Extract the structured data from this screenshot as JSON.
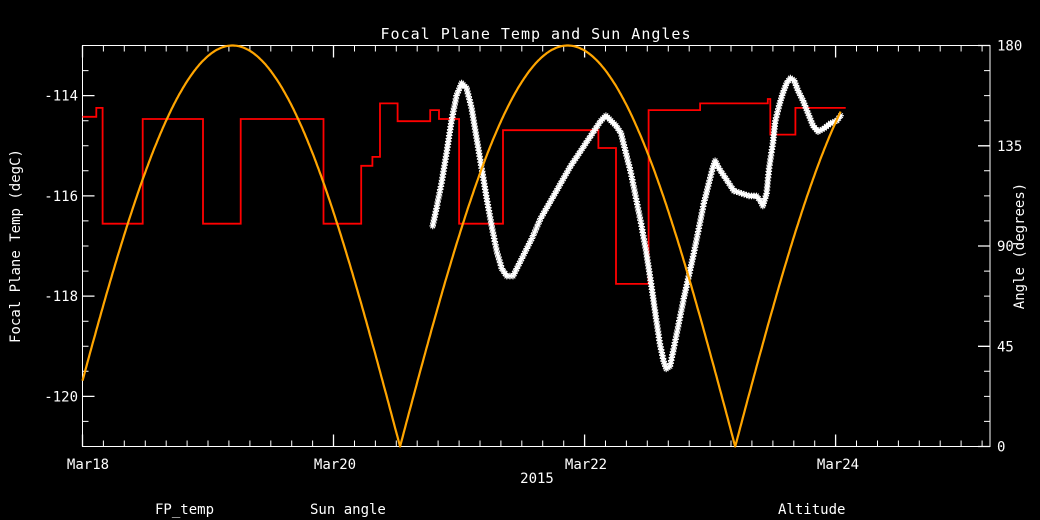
{
  "window": {
    "background": "#000000"
  },
  "chart_data": {
    "type": "line",
    "title": "Focal Plane Temp and Sun Angles",
    "x_axis": {
      "year_label": "2015",
      "tick_labels": [
        "Mar18",
        "Mar20",
        "Mar22",
        "Mar24"
      ],
      "tick_days": [
        0,
        2,
        4,
        6
      ],
      "range_days": [
        0,
        7.23
      ],
      "minor_step_days": 0.166667
    },
    "y_left_axis": {
      "label": "Focal Plane Temp (degC)",
      "tick_labels": [
        "-114",
        "-116",
        "-118",
        "-120"
      ],
      "tick_values": [
        -114,
        -116,
        -118,
        -120
      ],
      "range": [
        -121,
        -113
      ],
      "minor_step": 0.5
    },
    "y_right_axis": {
      "label": "Angle (degrees)",
      "tick_labels": [
        "180",
        "135",
        "90",
        "45",
        "0"
      ],
      "tick_values": [
        180,
        135,
        90,
        45,
        0
      ],
      "range": [
        0,
        180
      ],
      "minor_step": 11.25
    },
    "colors": {
      "background": "#000000",
      "axis": "#ffffff",
      "fp_temp": "#ffffff",
      "sun_angle": "#ff0000",
      "altitude": "#ffa500"
    },
    "legend": [
      {
        "label": "FP_temp",
        "color": "#ffffff"
      },
      {
        "label": "Sun angle",
        "color": "#ff0000"
      },
      {
        "label": "Altitude",
        "color": "#ffa500"
      }
    ],
    "series": [
      {
        "name": "FP_temp",
        "axis": "left",
        "color": "#ffffff",
        "style": "asterisk-markers",
        "points_day_degC": [
          [
            2.79,
            -116.6
          ],
          [
            2.82,
            -116.25
          ],
          [
            2.86,
            -115.75
          ],
          [
            2.9,
            -115.15
          ],
          [
            2.94,
            -114.5
          ],
          [
            2.98,
            -114.0
          ],
          [
            3.02,
            -113.75
          ],
          [
            3.06,
            -113.85
          ],
          [
            3.1,
            -114.25
          ],
          [
            3.14,
            -114.85
          ],
          [
            3.18,
            -115.45
          ],
          [
            3.22,
            -116.05
          ],
          [
            3.26,
            -116.6
          ],
          [
            3.3,
            -117.1
          ],
          [
            3.34,
            -117.45
          ],
          [
            3.38,
            -117.6
          ],
          [
            3.43,
            -117.6
          ],
          [
            3.47,
            -117.4
          ],
          [
            3.52,
            -117.15
          ],
          [
            3.58,
            -116.85
          ],
          [
            3.65,
            -116.45
          ],
          [
            3.73,
            -116.1
          ],
          [
            3.81,
            -115.75
          ],
          [
            3.89,
            -115.4
          ],
          [
            3.97,
            -115.1
          ],
          [
            4.05,
            -114.8
          ],
          [
            4.13,
            -114.5
          ],
          [
            4.17,
            -114.4
          ],
          [
            4.21,
            -114.5
          ],
          [
            4.25,
            -114.6
          ],
          [
            4.29,
            -114.75
          ],
          [
            4.33,
            -115.15
          ],
          [
            4.37,
            -115.55
          ],
          [
            4.41,
            -116.05
          ],
          [
            4.45,
            -116.55
          ],
          [
            4.49,
            -117.1
          ],
          [
            4.53,
            -117.75
          ],
          [
            4.57,
            -118.45
          ],
          [
            4.6,
            -118.95
          ],
          [
            4.63,
            -119.3
          ],
          [
            4.65,
            -119.45
          ],
          [
            4.68,
            -119.4
          ],
          [
            4.71,
            -119.05
          ],
          [
            4.75,
            -118.55
          ],
          [
            4.79,
            -118.05
          ],
          [
            4.83,
            -117.6
          ],
          [
            4.87,
            -117.15
          ],
          [
            4.91,
            -116.65
          ],
          [
            4.95,
            -116.15
          ],
          [
            4.99,
            -115.75
          ],
          [
            5.02,
            -115.45
          ],
          [
            5.04,
            -115.3
          ],
          [
            5.07,
            -115.45
          ],
          [
            5.11,
            -115.6
          ],
          [
            5.15,
            -115.75
          ],
          [
            5.19,
            -115.9
          ],
          [
            5.25,
            -115.95
          ],
          [
            5.31,
            -116.0
          ],
          [
            5.37,
            -116.0
          ],
          [
            5.4,
            -116.1
          ],
          [
            5.42,
            -116.2
          ],
          [
            5.45,
            -115.95
          ],
          [
            5.47,
            -115.45
          ],
          [
            5.5,
            -114.95
          ],
          [
            5.52,
            -114.5
          ],
          [
            5.55,
            -114.2
          ],
          [
            5.58,
            -113.95
          ],
          [
            5.61,
            -113.75
          ],
          [
            5.64,
            -113.65
          ],
          [
            5.67,
            -113.7
          ],
          [
            5.7,
            -113.9
          ],
          [
            5.74,
            -114.1
          ],
          [
            5.78,
            -114.35
          ],
          [
            5.82,
            -114.6
          ],
          [
            5.86,
            -114.72
          ],
          [
            5.91,
            -114.65
          ],
          [
            5.96,
            -114.55
          ],
          [
            6.01,
            -114.5
          ],
          [
            6.04,
            -114.4
          ]
        ]
      },
      {
        "name": "Sun angle",
        "axis": "right",
        "color": "#ff0000",
        "style": "step",
        "steps_day_deg": [
          [
            0,
            148
          ],
          [
            0.11,
            152
          ],
          [
            0.16,
            100
          ],
          [
            0.48,
            147
          ],
          [
            0.96,
            100
          ],
          [
            1.26,
            147
          ],
          [
            1.92,
            100
          ],
          [
            2.22,
            126
          ],
          [
            2.31,
            130
          ],
          [
            2.37,
            154
          ],
          [
            2.51,
            146
          ],
          [
            2.77,
            151
          ],
          [
            2.84,
            147
          ],
          [
            3.0,
            100
          ],
          [
            3.35,
            142
          ],
          [
            4.11,
            134
          ],
          [
            4.25,
            73
          ],
          [
            4.51,
            151
          ],
          [
            4.92,
            154
          ],
          [
            5.46,
            156
          ],
          [
            5.48,
            140
          ],
          [
            5.68,
            152
          ],
          [
            6.08,
            152
          ]
        ]
      },
      {
        "name": "Altitude",
        "axis": "right",
        "color": "#ffa500",
        "style": "abs-sine-arcs",
        "zero_crossing_days": [
          -0.14,
          2.53,
          5.2,
          7.87
        ],
        "peak_deg": 180,
        "draw_day_range": [
          0,
          6.04
        ]
      }
    ]
  }
}
